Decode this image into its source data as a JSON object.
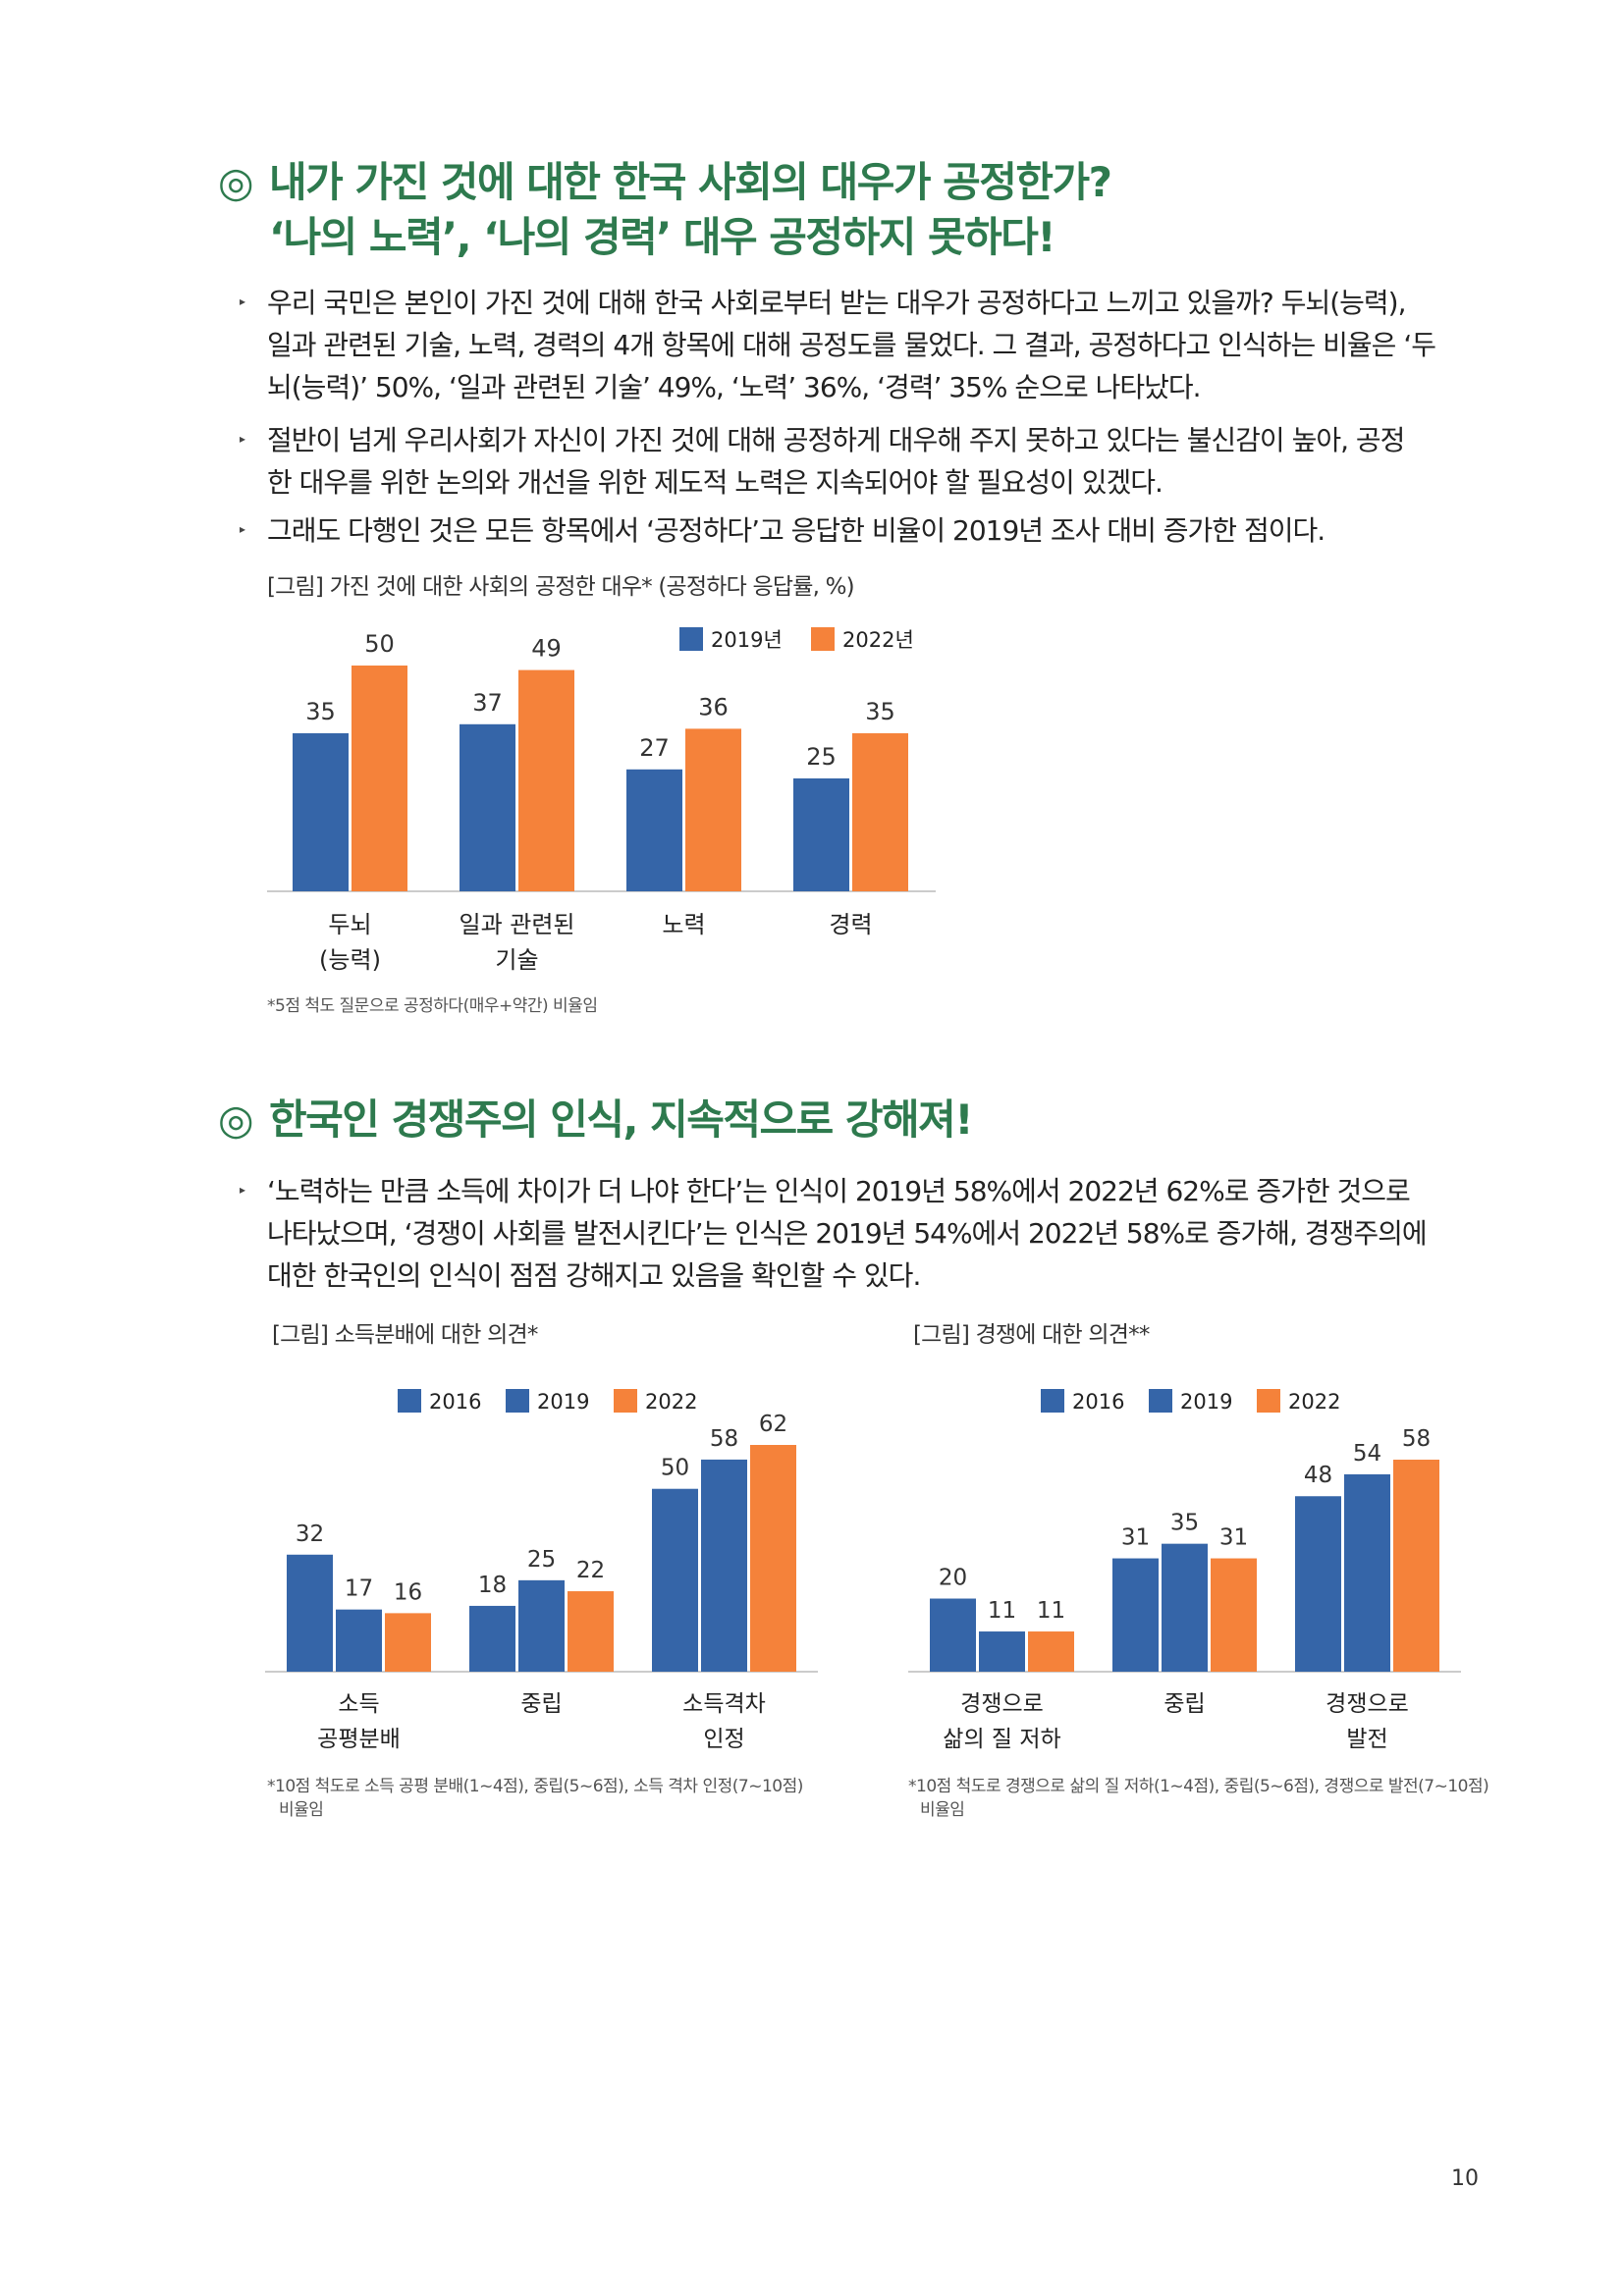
{
  "section1": {
    "heading_line1": "내가 가진 것에 대한 한국 사회의 대우가 공정한가?",
    "heading_line2": "‘나의 노력’, ‘나의 경력’ 대우 공정하지 못하다!",
    "mark": "◎",
    "bullets": [
      [
        "우리 국민은 본인이 가진 것에 대해 한국 사회로부터 받는 대우가 공정하다고 느끼고 있을까? 두뇌(능력),",
        "일과 관련된 기술, 노력, 경력의 4개 항목에 대해 공정도를 물었다. 그 결과, 공정하다고 인식하는 비율은 ‘두",
        "뇌(능력)’ 50%, ‘일과 관련된 기술’ 49%, ‘노력’ 36%, ‘경력’ 35% 순으로 나타났다."
      ],
      [
        " 절반이 넘게 우리사회가 자신이 가진 것에 대해 공정하게 대우해 주지 못하고 있다는 불신감이 높아, 공정",
        "한 대우를 위한 논의와 개선을 위한 제도적 노력은 지속되어야 할 필요성이 있겠다."
      ],
      [
        "그래도 다행인 것은 모든 항목에서 ‘공정하다’고 응답한 비율이 2019년 조사 대비 증가한 점이다."
      ]
    ],
    "figure_caption": "[그림] 가진 것에 대한 사회의 공정한 대우* (공정하다 응답률, %)",
    "footnote": "*5점 척도 질문으로 공정하다(매우+약간) 비율임"
  },
  "section2": {
    "heading": "한국인 경쟁주의 인식, 지속적으로 강해져!",
    "mark": "◎",
    "bullets": [
      [
        "‘노력하는 만큼 소득에 차이가 더 나야 한다’는 인식이 2019년 58%에서 2022년 62%로 증가한 것으로",
        "나타났으며, ‘경쟁이 사회를 발전시킨다’는 인식은 2019년 54%에서 2022년 58%로 증가해, 경쟁주의에",
        "대한 한국인의 인식이 점점 강해지고 있음을 확인할 수 있다."
      ]
    ],
    "figure_caption_left": "[그림] 소득분배에 대한 의견*",
    "figure_caption_right": "[그림] 경쟁에 대한 의견**",
    "footnote_left": [
      "*10점 척도로 소득 공평 분배(1~4점), 중립(5~6점), 소득 격차 인정(7~10점)",
      "비율임"
    ],
    "footnote_right": [
      "*10점 척도로 경쟁으로 삶의 질 저하(1~4점), 중립(5~6점), 경쟁으로 발전(7~10점)",
      "비율임"
    ]
  },
  "page_number": "10",
  "bullet_glyph": "▸",
  "colors": {
    "heading": "#2e7a4e",
    "c2016": "#3565a8",
    "c2019": "#3565a8",
    "c2022": "#f5823a"
  },
  "chart_data": [
    {
      "type": "bar",
      "categories": [
        [
          "두뇌",
          "(능력)"
        ],
        [
          "일과 관련된",
          "기술"
        ],
        [
          "노력"
        ],
        [
          "경력"
        ]
      ],
      "series": [
        {
          "name": "2019년",
          "values": [
            35,
            37,
            27,
            25
          ],
          "color": "#3565a8"
        },
        {
          "name": "2022년",
          "values": [
            50,
            49,
            36,
            35
          ],
          "color": "#f5823a"
        }
      ],
      "ylim": [
        0,
        50
      ],
      "legend": "top-right",
      "grid": false
    },
    {
      "type": "bar",
      "categories": [
        [
          "소득",
          "공평분배"
        ],
        [
          "중립"
        ],
        [
          "소득격차",
          "인정"
        ]
      ],
      "series": [
        {
          "name": "2016",
          "values": [
            32,
            18,
            50
          ],
          "color": "#3565a8"
        },
        {
          "name": "2019",
          "values": [
            17,
            25,
            58
          ],
          "color": "#3565a8"
        },
        {
          "name": "2022",
          "values": [
            16,
            22,
            62
          ],
          "color": "#f5823a"
        }
      ],
      "ylim": [
        0,
        62
      ],
      "legend": "top-center",
      "grid": false
    },
    {
      "type": "bar",
      "categories": [
        [
          "경쟁으로",
          "삶의 질 저하"
        ],
        [
          "중립"
        ],
        [
          "경쟁으로",
          "발전"
        ]
      ],
      "series": [
        {
          "name": "2016",
          "values": [
            20,
            31,
            48
          ],
          "color": "#3565a8"
        },
        {
          "name": "2019",
          "values": [
            11,
            35,
            54
          ],
          "color": "#3565a8"
        },
        {
          "name": "2022",
          "values": [
            11,
            31,
            58
          ],
          "color": "#f5823a"
        }
      ],
      "ylim": [
        0,
        58
      ],
      "legend": "top-center",
      "grid": false
    }
  ]
}
